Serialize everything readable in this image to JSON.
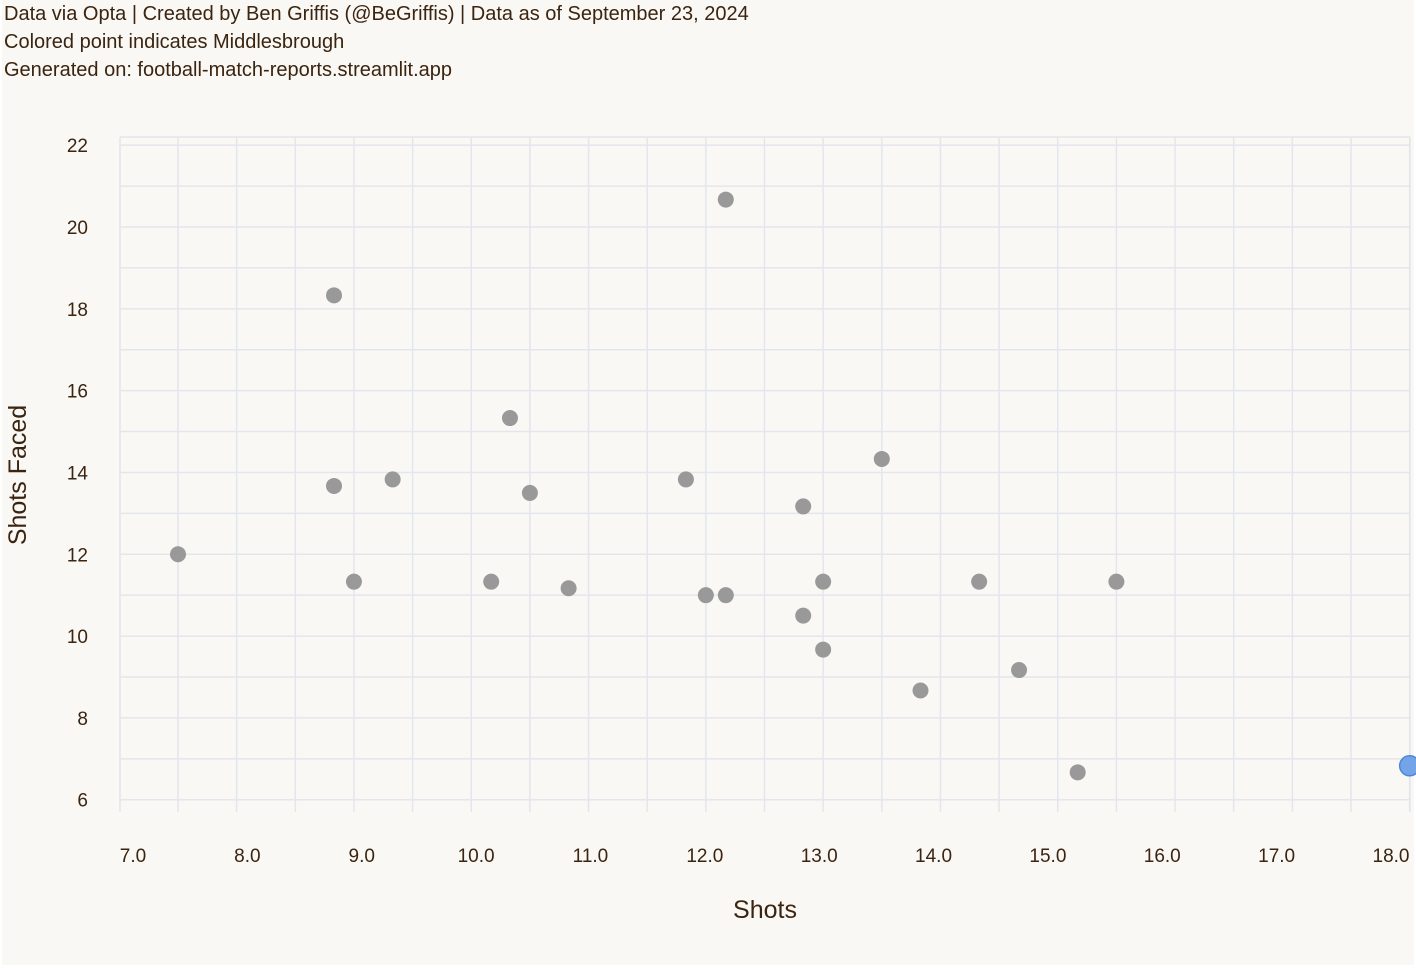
{
  "captions": {
    "line1": "Data via Opta | Created by Ben Griffis (@BeGriffis) | Data as of September 23, 2024",
    "line2": "Colored point indicates Middlesbrough",
    "line3": "Generated on: football-match-reports.streamlit.app"
  },
  "colors": {
    "background": "#f9f8f4",
    "grid": "#e3e6ec",
    "point": "#999999",
    "highlight": "#6a9fe6",
    "text": "#3b2410"
  },
  "chart_data": {
    "type": "scatter",
    "xlabel": "Shots",
    "ylabel": "Shots Faced",
    "xlim": [
      7.0,
      18.0
    ],
    "ylim": [
      6,
      22
    ],
    "x_ticks": [
      "7.0",
      "8.0",
      "9.0",
      "10.0",
      "11.0",
      "12.0",
      "13.0",
      "14.0",
      "15.0",
      "16.0",
      "17.0",
      "18.0"
    ],
    "y_ticks": [
      "22",
      "20",
      "18",
      "16",
      "14",
      "12",
      "10",
      "8",
      "6"
    ],
    "grid": true,
    "highlight_team": "Middlesbrough",
    "points": [
      {
        "x": 7.5,
        "y": 12.0
      },
      {
        "x": 8.83,
        "y": 18.33
      },
      {
        "x": 8.83,
        "y": 13.67
      },
      {
        "x": 9.0,
        "y": 11.33
      },
      {
        "x": 9.33,
        "y": 13.83
      },
      {
        "x": 10.17,
        "y": 11.33
      },
      {
        "x": 10.33,
        "y": 15.33
      },
      {
        "x": 10.5,
        "y": 13.5
      },
      {
        "x": 10.83,
        "y": 11.17
      },
      {
        "x": 11.83,
        "y": 13.83
      },
      {
        "x": 12.0,
        "y": 11.0
      },
      {
        "x": 12.17,
        "y": 11.0
      },
      {
        "x": 12.17,
        "y": 20.67
      },
      {
        "x": 12.83,
        "y": 13.17
      },
      {
        "x": 12.83,
        "y": 10.5
      },
      {
        "x": 13.0,
        "y": 11.33
      },
      {
        "x": 13.0,
        "y": 9.67
      },
      {
        "x": 13.5,
        "y": 14.33
      },
      {
        "x": 13.83,
        "y": 8.67
      },
      {
        "x": 14.33,
        "y": 11.33
      },
      {
        "x": 14.67,
        "y": 9.17
      },
      {
        "x": 15.17,
        "y": 6.67
      },
      {
        "x": 15.5,
        "y": 11.33
      },
      {
        "x": 18.0,
        "y": 6.83,
        "highlight": true,
        "team": "Middlesbrough"
      }
    ]
  }
}
